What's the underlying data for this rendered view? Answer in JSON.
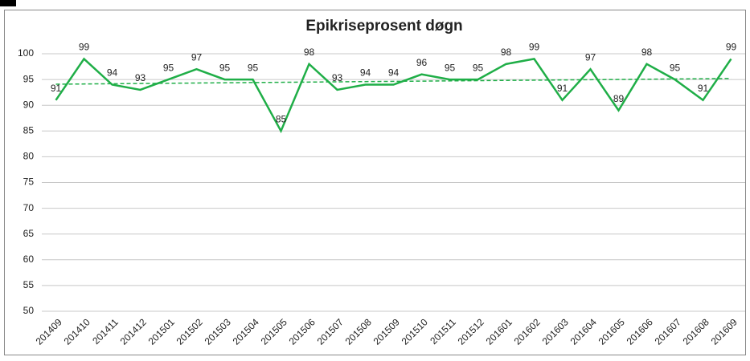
{
  "chart_data": {
    "type": "line",
    "title": "Epikriseprosent døgn",
    "categories": [
      "201409",
      "201410",
      "201411",
      "201412",
      "201501",
      "201502",
      "201503",
      "201504",
      "201505",
      "201506",
      "201507",
      "201508",
      "201509",
      "201510",
      "201511",
      "201512",
      "201601",
      "201602",
      "201603",
      "201604",
      "201605",
      "201606",
      "201607",
      "201608",
      "201609"
    ],
    "values": [
      91,
      99,
      94,
      93,
      95,
      97,
      95,
      95,
      85,
      98,
      93,
      94,
      94,
      96,
      95,
      95,
      98,
      99,
      91,
      97,
      89,
      98,
      95,
      91,
      99
    ],
    "color": "#1fae47",
    "ylim": [
      50,
      100
    ],
    "yticks": [
      50,
      55,
      60,
      65,
      70,
      75,
      80,
      85,
      90,
      95,
      100
    ],
    "grid": true,
    "trendline": true
  }
}
